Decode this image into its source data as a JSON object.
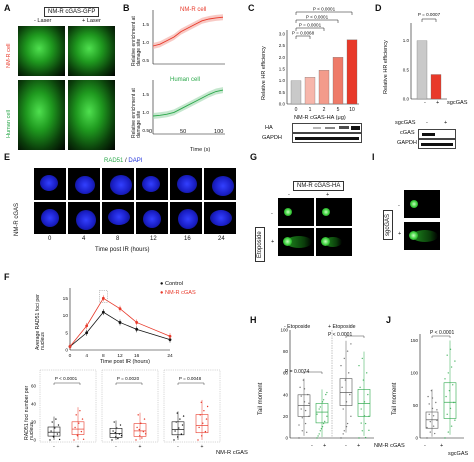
{
  "panels": {
    "A": {
      "letter": "A",
      "title": "NM-R cGAS-GFP",
      "minus_laser": "- Laser",
      "plus_laser": "+ Laser",
      "row1": "NM-R cell",
      "row2": "Human cell"
    },
    "B": {
      "letter": "B",
      "top_legend": "NM-R cell",
      "bottom_legend": "Human cell",
      "ylabel": "Relative enrichment at damage site",
      "xlabel": "Time (s)",
      "yticks": [
        "0.5",
        "1.0",
        "1.5"
      ],
      "xticks": [
        "0",
        "50",
        "100"
      ]
    },
    "C": {
      "letter": "C",
      "ylabel": "Relative HR efficiency",
      "xlabel": "NM-R cGAS-HA (μg)",
      "xcats": [
        "0",
        "1",
        "2",
        "5",
        "10"
      ],
      "pvals": [
        "P < 0.0001",
        "P < 0.0001",
        "P = 0.0068",
        "P = 0.0001"
      ],
      "yticks": [
        "0.0",
        "0.5",
        "1.0",
        "1.5",
        "2.0",
        "2.5",
        "3.0"
      ],
      "blot1": "HA",
      "blot2": "GAPDH"
    },
    "D": {
      "letter": "D",
      "ylabel": "Relative HR efficiency",
      "pval": "P = 0.0007",
      "yticks": [
        "0.0",
        "0.5",
        "1.0"
      ],
      "minus": "-",
      "plus": "+",
      "xlabel": "sgcGAS",
      "blot_header": "sgcGAS",
      "blot1": "cGAS",
      "blot2": "GAPDH"
    },
    "E": {
      "letter": "E",
      "title_rad51": "RAD51",
      "title_sep": " / ",
      "title_dapi": "DAPI",
      "row": "NM-R cGAS",
      "xlabel": "Time post IR (hours)",
      "times": [
        "0",
        "4",
        "8",
        "12",
        "16",
        "24"
      ]
    },
    "F": {
      "letter": "F",
      "ylabel": "Average RAD51 foci per nucleus",
      "xlabel": "Time post IR (hours)",
      "legend_control": "Control",
      "legend_nmr": "NM-R cGAS",
      "xticks": [
        "0",
        "4",
        "8",
        "12",
        "16",
        "24"
      ],
      "yticks": [
        "0",
        "5",
        "10",
        "15"
      ],
      "box_ylabel": "RAD51 foci number per nucleus",
      "box_pvals": [
        "P < 0.0001",
        "P = 0.0020",
        "P = 0.0048"
      ],
      "box_yticks": [
        "0",
        "20",
        "40",
        "60"
      ],
      "footer": "NM-R cGAS",
      "minus": "-",
      "plus": "+"
    },
    "G": {
      "letter": "G",
      "title": "NM-R cGAS-HA",
      "minus": "-",
      "plus": "+",
      "row": "Etoposide"
    },
    "H": {
      "letter": "H",
      "ylabel": "Tail moment",
      "group1": "- Etoposide",
      "group2": "+ Etoposide",
      "pval1": "P = 0.0074",
      "pval2": "P < 0.0001",
      "yticks": [
        "0",
        "20",
        "40",
        "60",
        "80",
        "100"
      ],
      "footer": "NM-R cGAS",
      "minus": "-",
      "plus": "+"
    },
    "I": {
      "letter": "I",
      "row": "sgcGAS",
      "minus": "-",
      "plus": "+"
    },
    "J": {
      "letter": "J",
      "ylabel": "Tail moment",
      "pval": "P < 0.0001",
      "yticks": [
        "0",
        "50",
        "100",
        "150"
      ],
      "footer": "sgcGAS",
      "minus": "-",
      "plus": "+"
    }
  },
  "colors": {
    "nmr_red": "#e8392a",
    "human_green": "#2aa84a",
    "control_black": "#111111",
    "bar_gray": "#b0b0b0",
    "bar_salmon": "#f08a7a"
  },
  "chart_data": [
    {
      "type": "bar",
      "panel": "C",
      "categories": [
        "0",
        "1",
        "2",
        "5",
        "10"
      ],
      "values": [
        1.0,
        1.15,
        1.45,
        2.0,
        2.75
      ],
      "ylim": [
        0,
        3.0
      ]
    },
    {
      "type": "bar",
      "panel": "D",
      "categories": [
        "-",
        "+"
      ],
      "values": [
        1.0,
        0.42
      ],
      "ylim": [
        0,
        1.2
      ]
    },
    {
      "type": "line",
      "panel": "B-top",
      "x": [
        0,
        10,
        20,
        30,
        40,
        50,
        60,
        70,
        80,
        90,
        100
      ],
      "values": [
        1.0,
        1.05,
        1.15,
        1.25,
        1.4,
        1.5,
        1.6,
        1.7,
        1.75,
        1.78,
        1.8
      ],
      "ylim": [
        0.5,
        2.0
      ]
    },
    {
      "type": "line",
      "panel": "B-bottom",
      "x": [
        0,
        10,
        20,
        30,
        40,
        50,
        60,
        70,
        80,
        90,
        100
      ],
      "values": [
        1.0,
        1.02,
        1.05,
        1.1,
        1.2,
        1.3,
        1.4,
        1.5,
        1.6,
        1.68,
        1.72
      ],
      "ylim": [
        0.5,
        2.0
      ]
    },
    {
      "type": "line",
      "panel": "F",
      "x": [
        0,
        4,
        8,
        12,
        16,
        24
      ],
      "series": [
        {
          "name": "Control",
          "values": [
            1,
            5,
            11,
            8,
            6,
            3
          ]
        },
        {
          "name": "NM-R cGAS",
          "values": [
            1,
            7,
            15,
            12,
            8,
            4
          ]
        }
      ],
      "ylim": [
        0,
        18
      ]
    }
  ]
}
